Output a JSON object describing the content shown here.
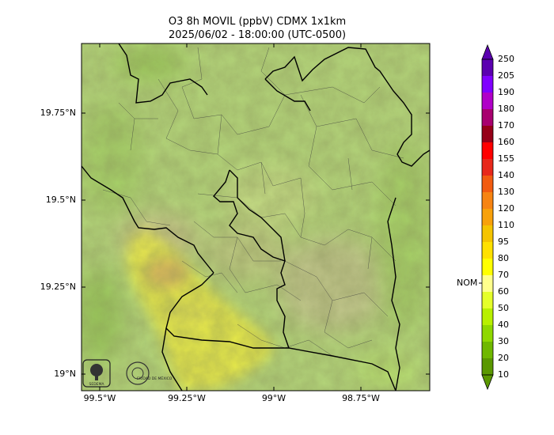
{
  "title": {
    "line1": "O3 8h MOVIL (ppbV) CDMX 1x1km",
    "line2": "2025/06/02 - 18:00:00 (UTC-0500)"
  },
  "axes": {
    "lat_ticks": [
      "19.75°N",
      "19.5°N",
      "19.25°N",
      "19°N"
    ],
    "lon_ticks": [
      "99.5°W",
      "99.25°W",
      "99°W",
      "98.75°W"
    ]
  },
  "colorbar": {
    "levels": [
      "250",
      "205",
      "190",
      "180",
      "170",
      "160",
      "155",
      "140",
      "130",
      "120",
      "110",
      "95",
      "80",
      "70",
      "60",
      "50",
      "40",
      "30",
      "20",
      "10"
    ],
    "colors": [
      "#5b00b0",
      "#8000ff",
      "#b000c8",
      "#a8006f",
      "#960018",
      "#ff0000",
      "#e8281b",
      "#f25b10",
      "#f78412",
      "#f8a10a",
      "#f5c400",
      "#ffe100",
      "#ffff00",
      "#ffff8c",
      "#e5ff2a",
      "#b8f000",
      "#8fd800",
      "#6fb800",
      "#5a9800"
    ],
    "nom_label": "NOM"
  },
  "logos": {
    "left": "SEDEMA",
    "right": "CIUDAD DE MÉXICO"
  },
  "map_colors": {
    "base_green": "#b7d87a",
    "yellow_plume": "#e6e84a",
    "tan_urban": "#c9c07a",
    "boundary": "#000000"
  }
}
